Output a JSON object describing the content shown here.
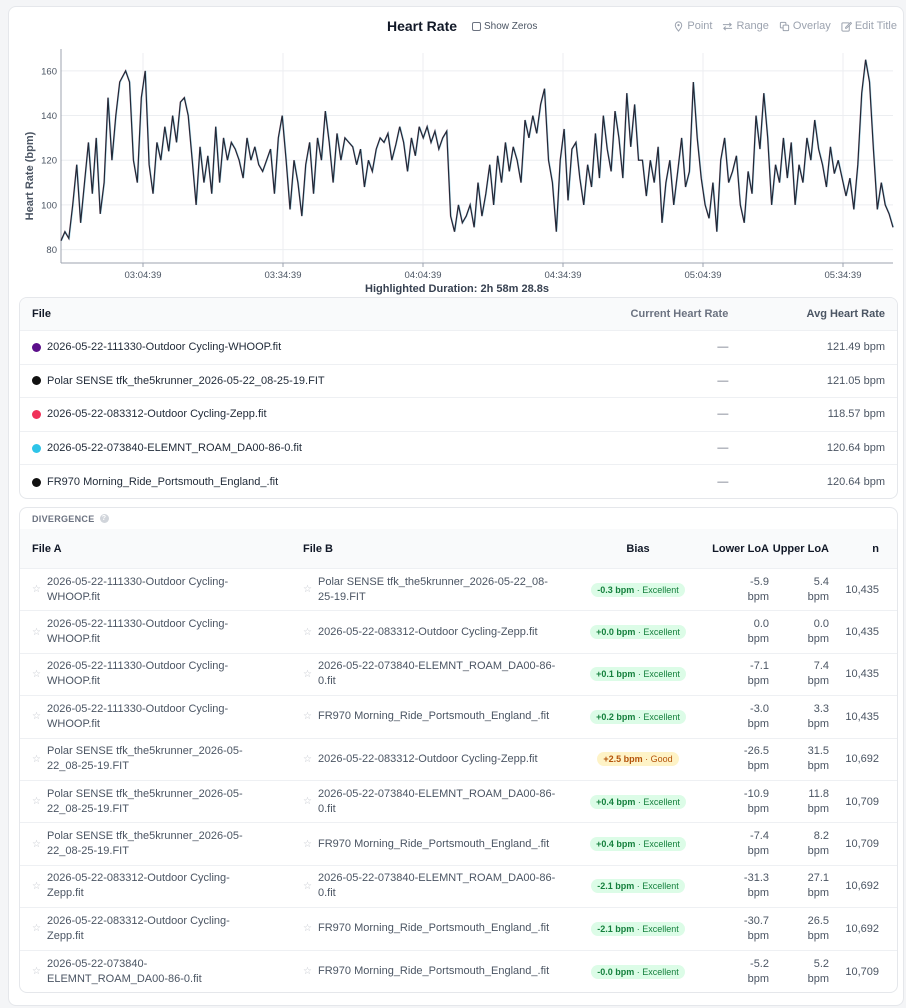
{
  "header": {
    "title": "Heart Rate",
    "show_zeros_label": "Show Zeros",
    "tools": {
      "point": "Point",
      "range": "Range",
      "overlay": "Overlay",
      "edit_title": "Edit Title"
    }
  },
  "chart_data": {
    "type": "line",
    "ylabel": "Heart Rate (bpm)",
    "xlabel": "",
    "y_ticks": [
      80,
      100,
      120,
      140,
      160
    ],
    "ylim": [
      74,
      168
    ],
    "x_ticks": [
      "03:04:39",
      "03:34:39",
      "04:04:39",
      "04:34:39",
      "05:04:39",
      "05:34:39"
    ],
    "x_range": [
      "02:48:00",
      "05:45:00"
    ],
    "grid": true,
    "series": [
      {
        "color": "#1f2937",
        "points": [
          [
            0,
            84
          ],
          [
            2,
            88
          ],
          [
            4,
            85
          ],
          [
            6,
            100
          ],
          [
            8,
            118
          ],
          [
            10,
            92
          ],
          [
            12,
            110
          ],
          [
            14,
            128
          ],
          [
            16,
            105
          ],
          [
            18,
            130
          ],
          [
            20,
            96
          ],
          [
            22,
            110
          ],
          [
            24,
            148
          ],
          [
            26,
            120
          ],
          [
            28,
            140
          ],
          [
            30,
            155
          ],
          [
            33,
            160
          ],
          [
            35,
            155
          ],
          [
            37,
            120
          ],
          [
            39,
            110
          ],
          [
            41,
            148
          ],
          [
            43,
            160
          ],
          [
            45,
            118
          ],
          [
            47,
            105
          ],
          [
            49,
            128
          ],
          [
            51,
            120
          ],
          [
            53,
            135
          ],
          [
            55,
            124
          ],
          [
            57,
            140
          ],
          [
            59,
            128
          ],
          [
            61,
            146
          ],
          [
            63,
            148
          ],
          [
            65,
            140
          ],
          [
            67,
            120
          ],
          [
            69,
            100
          ],
          [
            71,
            126
          ],
          [
            73,
            110
          ],
          [
            75,
            122
          ],
          [
            77,
            105
          ],
          [
            79,
            135
          ],
          [
            81,
            110
          ],
          [
            83,
            130
          ],
          [
            85,
            120
          ],
          [
            87,
            128
          ],
          [
            89,
            125
          ],
          [
            91,
            120
          ],
          [
            93,
            112
          ],
          [
            95,
            130
          ],
          [
            97,
            120
          ],
          [
            99,
            126
          ],
          [
            101,
            118
          ],
          [
            103,
            115
          ],
          [
            105,
            120
          ],
          [
            107,
            125
          ],
          [
            109,
            105
          ],
          [
            111,
            130
          ],
          [
            113,
            140
          ],
          [
            115,
            120
          ],
          [
            117,
            98
          ],
          [
            119,
            120
          ],
          [
            121,
            110
          ],
          [
            123,
            95
          ],
          [
            125,
            118
          ],
          [
            127,
            128
          ],
          [
            129,
            105
          ],
          [
            131,
            130
          ],
          [
            133,
            120
          ],
          [
            135,
            142
          ],
          [
            137,
            128
          ],
          [
            139,
            110
          ],
          [
            141,
            132
          ],
          [
            143,
            120
          ],
          [
            145,
            130
          ],
          [
            147,
            128
          ],
          [
            149,
            126
          ],
          [
            151,
            118
          ],
          [
            153,
            125
          ],
          [
            155,
            108
          ],
          [
            157,
            120
          ],
          [
            159,
            115
          ],
          [
            161,
            125
          ],
          [
            163,
            130
          ],
          [
            165,
            128
          ],
          [
            167,
            132
          ],
          [
            169,
            120
          ],
          [
            171,
            127
          ],
          [
            173,
            135
          ],
          [
            175,
            128
          ],
          [
            177,
            115
          ],
          [
            179,
            130
          ],
          [
            181,
            122
          ],
          [
            183,
            135
          ],
          [
            185,
            130
          ],
          [
            187,
            135
          ],
          [
            189,
            128
          ],
          [
            191,
            133
          ],
          [
            193,
            125
          ],
          [
            195,
            130
          ],
          [
            197,
            133
          ],
          [
            199,
            95
          ],
          [
            201,
            88
          ],
          [
            203,
            100
          ],
          [
            205,
            92
          ],
          [
            207,
            95
          ],
          [
            209,
            100
          ],
          [
            211,
            90
          ],
          [
            213,
            110
          ],
          [
            215,
            95
          ],
          [
            217,
            105
          ],
          [
            219,
            118
          ],
          [
            221,
            100
          ],
          [
            223,
            122
          ],
          [
            225,
            110
          ],
          [
            227,
            128
          ],
          [
            229,
            115
          ],
          [
            231,
            126
          ],
          [
            233,
            120
          ],
          [
            235,
            110
          ],
          [
            237,
            138
          ],
          [
            239,
            130
          ],
          [
            241,
            140
          ],
          [
            243,
            132
          ],
          [
            245,
            145
          ],
          [
            247,
            152
          ],
          [
            249,
            120
          ],
          [
            251,
            110
          ],
          [
            253,
            88
          ],
          [
            255,
            120
          ],
          [
            257,
            134
          ],
          [
            259,
            102
          ],
          [
            261,
            125
          ],
          [
            263,
            128
          ],
          [
            265,
            112
          ],
          [
            267,
            100
          ],
          [
            269,
            118
          ],
          [
            271,
            108
          ],
          [
            273,
            132
          ],
          [
            275,
            112
          ],
          [
            277,
            140
          ],
          [
            279,
            125
          ],
          [
            281,
            115
          ],
          [
            283,
            142
          ],
          [
            285,
            130
          ],
          [
            287,
            112
          ],
          [
            289,
            150
          ],
          [
            291,
            126
          ],
          [
            293,
            145
          ],
          [
            295,
            120
          ],
          [
            297,
            120
          ],
          [
            299,
            104
          ],
          [
            301,
            120
          ],
          [
            303,
            110
          ],
          [
            305,
            126
          ],
          [
            307,
            92
          ],
          [
            309,
            110
          ],
          [
            311,
            120
          ],
          [
            313,
            100
          ],
          [
            315,
            115
          ],
          [
            317,
            130
          ],
          [
            319,
            108
          ],
          [
            321,
            115
          ],
          [
            323,
            155
          ],
          [
            325,
            130
          ],
          [
            327,
            112
          ],
          [
            329,
            100
          ],
          [
            331,
            94
          ],
          [
            333,
            110
          ],
          [
            335,
            88
          ],
          [
            337,
            120
          ],
          [
            339,
            130
          ],
          [
            341,
            110
          ],
          [
            343,
            115
          ],
          [
            345,
            122
          ],
          [
            347,
            100
          ],
          [
            349,
            92
          ],
          [
            351,
            115
          ],
          [
            353,
            105
          ],
          [
            355,
            140
          ],
          [
            357,
            125
          ],
          [
            359,
            150
          ],
          [
            361,
            130
          ],
          [
            363,
            100
          ],
          [
            365,
            118
          ],
          [
            367,
            110
          ],
          [
            369,
            130
          ],
          [
            371,
            112
          ],
          [
            373,
            128
          ],
          [
            375,
            100
          ],
          [
            377,
            118
          ],
          [
            379,
            110
          ],
          [
            381,
            130
          ],
          [
            383,
            120
          ],
          [
            385,
            138
          ],
          [
            387,
            125
          ],
          [
            389,
            118
          ],
          [
            391,
            108
          ],
          [
            393,
            126
          ],
          [
            395,
            114
          ],
          [
            397,
            120
          ],
          [
            399,
            112
          ],
          [
            401,
            104
          ],
          [
            403,
            112
          ],
          [
            405,
            98
          ],
          [
            407,
            118
          ],
          [
            409,
            150
          ],
          [
            411,
            165
          ],
          [
            413,
            155
          ],
          [
            415,
            125
          ],
          [
            417,
            98
          ],
          [
            419,
            110
          ],
          [
            421,
            100
          ],
          [
            423,
            96
          ],
          [
            425,
            90
          ]
        ]
      }
    ]
  },
  "highlight_label": "Highlighted Duration: 2h 58m 28.8s",
  "files": {
    "headers": {
      "file": "File",
      "current": "Current Heart Rate",
      "avg": "Avg Heart Rate"
    },
    "rows": [
      {
        "color": "#5b0f8a",
        "name": "2026-05-22-111330-Outdoor Cycling-WHOOP.fit",
        "current": "—",
        "avg": "121.49 bpm"
      },
      {
        "color": "#111111",
        "name": "Polar SENSE tfk_the5krunner_2026-05-22_08-25-19.FIT",
        "current": "—",
        "avg": "121.05 bpm"
      },
      {
        "color": "#f0325a",
        "name": "2026-05-22-083312-Outdoor Cycling-Zepp.fit",
        "current": "—",
        "avg": "118.57 bpm"
      },
      {
        "color": "#2ec4e8",
        "name": "2026-05-22-073840-ELEMNT_ROAM_DA00-86-0.fit",
        "current": "—",
        "avg": "120.64 bpm"
      },
      {
        "color": "#111111",
        "name": "FR970 Morning_Ride_Portsmouth_England_.fit",
        "current": "—",
        "avg": "120.64 bpm"
      }
    ]
  },
  "divergence": {
    "title": "DIVERGENCE",
    "headers": {
      "file_a": "File A",
      "file_b": "File B",
      "bias": "Bias",
      "lower": "Lower LoA",
      "upper": "Upper LoA",
      "n": "n"
    },
    "rows": [
      {
        "a": "2026-05-22-111330-Outdoor Cycling-WHOOP.fit",
        "b": "Polar SENSE tfk_the5krunner_2026-05-22_08-25-19.FIT",
        "bias": "-0.3 bpm",
        "quality": "Excellent",
        "lower": "-5.9 bpm",
        "upper": "5.4 bpm",
        "n": "10,435"
      },
      {
        "a": "2026-05-22-111330-Outdoor Cycling-WHOOP.fit",
        "b": "2026-05-22-083312-Outdoor Cycling-Zepp.fit",
        "bias": "+0.0 bpm",
        "quality": "Excellent",
        "lower": "0.0 bpm",
        "upper": "0.0 bpm",
        "n": "10,435"
      },
      {
        "a": "2026-05-22-111330-Outdoor Cycling-WHOOP.fit",
        "b": "2026-05-22-073840-ELEMNT_ROAM_DA00-86-0.fit",
        "bias": "+0.1 bpm",
        "quality": "Excellent",
        "lower": "-7.1 bpm",
        "upper": "7.4 bpm",
        "n": "10,435"
      },
      {
        "a": "2026-05-22-111330-Outdoor Cycling-WHOOP.fit",
        "b": "FR970 Morning_Ride_Portsmouth_England_.fit",
        "bias": "+0.2 bpm",
        "quality": "Excellent",
        "lower": "-3.0 bpm",
        "upper": "3.3 bpm",
        "n": "10,435"
      },
      {
        "a": "Polar SENSE tfk_the5krunner_2026-05-22_08-25-19.FIT",
        "b": "2026-05-22-083312-Outdoor Cycling-Zepp.fit",
        "bias": "+2.5 bpm",
        "quality": "Good",
        "lower": "-26.5 bpm",
        "upper": "31.5 bpm",
        "n": "10,692"
      },
      {
        "a": "Polar SENSE tfk_the5krunner_2026-05-22_08-25-19.FIT",
        "b": "2026-05-22-073840-ELEMNT_ROAM_DA00-86-0.fit",
        "bias": "+0.4 bpm",
        "quality": "Excellent",
        "lower": "-10.9 bpm",
        "upper": "11.8 bpm",
        "n": "10,709"
      },
      {
        "a": "Polar SENSE tfk_the5krunner_2026-05-22_08-25-19.FIT",
        "b": "FR970 Morning_Ride_Portsmouth_England_.fit",
        "bias": "+0.4 bpm",
        "quality": "Excellent",
        "lower": "-7.4 bpm",
        "upper": "8.2 bpm",
        "n": "10,709"
      },
      {
        "a": "2026-05-22-083312-Outdoor Cycling-Zepp.fit",
        "b": "2026-05-22-073840-ELEMNT_ROAM_DA00-86-0.fit",
        "bias": "-2.1 bpm",
        "quality": "Excellent",
        "lower": "-31.3 bpm",
        "upper": "27.1 bpm",
        "n": "10,692"
      },
      {
        "a": "2026-05-22-083312-Outdoor Cycling-Zepp.fit",
        "b": "FR970 Morning_Ride_Portsmouth_England_.fit",
        "bias": "-2.1 bpm",
        "quality": "Excellent",
        "lower": "-30.7 bpm",
        "upper": "26.5 bpm",
        "n": "10,692"
      },
      {
        "a": "2026-05-22-073840-ELEMNT_ROAM_DA00-86-0.fit",
        "b": "FR970 Morning_Ride_Portsmouth_England_.fit",
        "bias": "-0.0 bpm",
        "quality": "Excellent",
        "lower": "-5.2 bpm",
        "upper": "5.2 bpm",
        "n": "10,709"
      }
    ]
  }
}
